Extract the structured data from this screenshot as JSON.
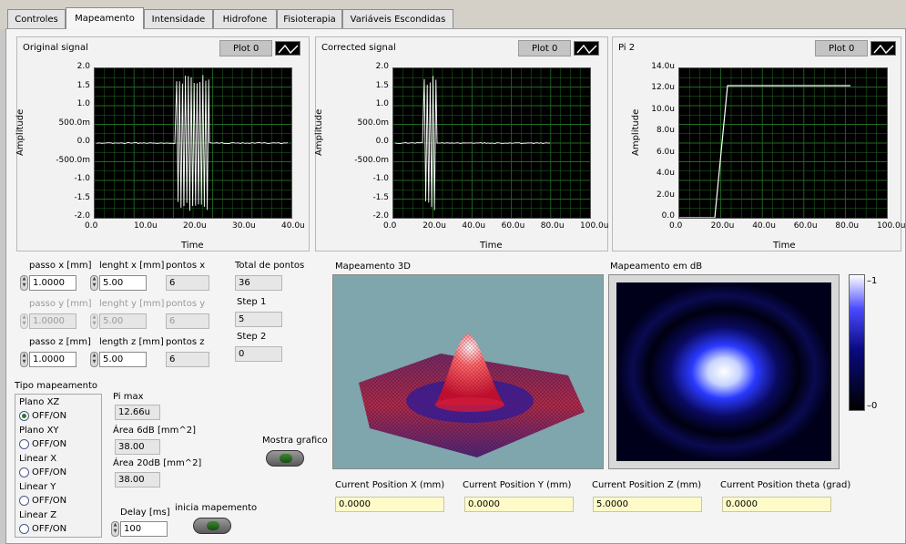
{
  "tabs": [
    "Controles",
    "Mapeamento",
    "Intensidade",
    "Hidrofone",
    "Fisioterapia",
    "Variáveis Escondidas"
  ],
  "graphs": [
    {
      "title": "Original signal",
      "plot_label": "Plot 0",
      "ylabel": "Amplitude",
      "xlabel": "Time",
      "yticks": [
        "2.0",
        "1.5",
        "1.0",
        "500.0m",
        "0.0",
        "-500.0m",
        "-1.0",
        "-1.5",
        "-2.0"
      ],
      "xticks": [
        "0.0",
        "10.0u",
        "20.0u",
        "30.0u",
        "40.0u"
      ]
    },
    {
      "title": "Corrected signal",
      "plot_label": "Plot 0",
      "ylabel": "Amplitude",
      "xlabel": "Time",
      "yticks": [
        "2.0",
        "1.5",
        "1.0",
        "500.0m",
        "0.0",
        "-500.0m",
        "-1.0",
        "-1.5",
        "-2.0"
      ],
      "xticks": [
        "0.0",
        "20.0u",
        "40.0u",
        "60.0u",
        "80.0u",
        "100.0u"
      ]
    },
    {
      "title": "Pi 2",
      "plot_label": "Plot 0",
      "ylabel": "Amplitude",
      "xlabel": "Time",
      "yticks": [
        "14.0u",
        "12.0u",
        "10.0u",
        "8.0u",
        "6.0u",
        "4.0u",
        "2.0u",
        "0.0"
      ],
      "xticks": [
        "0.0",
        "20.0u",
        "40.0u",
        "60.0u",
        "80.0u",
        "100.0u"
      ]
    }
  ],
  "grid_params": {
    "passo_x_label": "passo x [mm]",
    "passo_x": "1.0000",
    "lenght_x_label": "lenght x [mm]",
    "lenght_x": "5.00",
    "pontos_x_label": "pontos x",
    "pontos_x": "6",
    "passo_y_label": "passo y [mm]",
    "passo_y": "1.0000",
    "lenght_y_label": "lenght y [mm]",
    "lenght_y": "5.00",
    "pontos_y_label": "pontos y",
    "pontos_y": "6",
    "passo_z_label": "passo z [mm]",
    "passo_z": "1.0000",
    "length_z_label": "length z [mm]",
    "length_z": "5.00",
    "pontos_z_label": "pontos z",
    "pontos_z": "6"
  },
  "totals": {
    "total_label": "Total de pontos",
    "total": "36",
    "step1_label": "Step 1",
    "step1": "5",
    "step2_label": "Step 2",
    "step2": "0"
  },
  "tipo": {
    "title": "Tipo mapeamento",
    "options": [
      {
        "name": "Plano XZ",
        "state": "OFF/ON",
        "selected": true
      },
      {
        "name": "Plano XY",
        "state": "OFF/ON",
        "selected": false
      },
      {
        "name": "Linear X",
        "state": "OFF/ON",
        "selected": false
      },
      {
        "name": "Linear Y",
        "state": "OFF/ON",
        "selected": false
      },
      {
        "name": "Linear Z",
        "state": "OFF/ON",
        "selected": false
      }
    ]
  },
  "results": {
    "pimax_label": "Pi max",
    "pimax": "12.66u",
    "area6_label": "Área 6dB [mm^2]",
    "area6": "38.00",
    "area20_label": "Área 20dB [mm^2]",
    "area20": "38.00"
  },
  "delay": {
    "label": "Delay [ms]",
    "value": "100"
  },
  "buttons": {
    "mostra": "Mostra grafico",
    "inicia": "inicia mapemento"
  },
  "maps": {
    "map3d_title": "Mapeamento 3D",
    "mapdb_title": "Mapeamento em dB",
    "scale_top": "1",
    "scale_bottom": "0"
  },
  "positions": [
    {
      "label": "Current Position X (mm)",
      "value": "0.0000"
    },
    {
      "label": "Current Position Y (mm)",
      "value": "0.0000"
    },
    {
      "label": "Current Position Z (mm)",
      "value": "5.0000"
    },
    {
      "label": "Current Position theta (grad)",
      "value": "0.0000"
    }
  ],
  "colors": {
    "plot_bg": "#000000",
    "grid": "#1f6b1f",
    "trace": "#ffffff",
    "map3d_bg": "#7fa5ad",
    "field_yellow": "#fffbc8"
  }
}
